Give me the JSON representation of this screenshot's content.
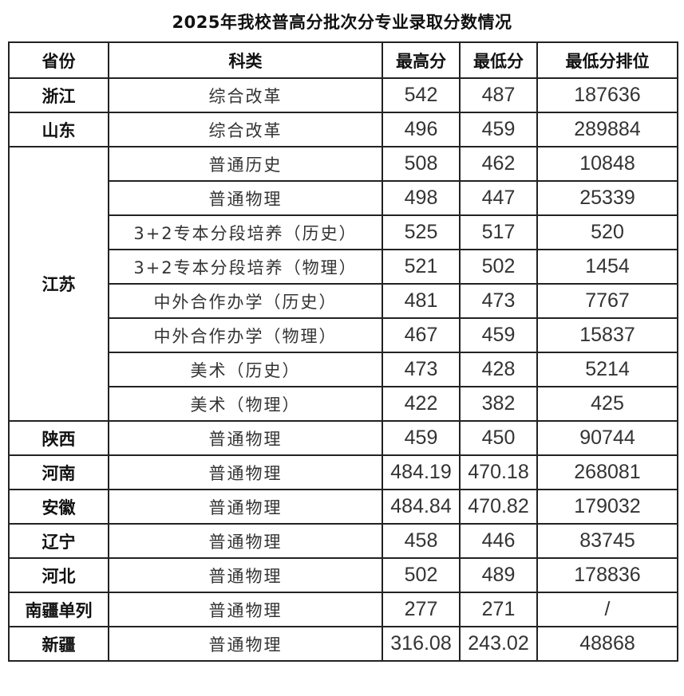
{
  "title": "2025年我校普高分批次分专业录取分数情况",
  "headers": [
    "省份",
    "科类",
    "最高分",
    "最低分",
    "最低分排位"
  ],
  "groups": [
    {
      "province": "浙江",
      "rows": [
        [
          "综合改革",
          "542",
          "487",
          "187636"
        ]
      ]
    },
    {
      "province": "山东",
      "rows": [
        [
          "综合改革",
          "496",
          "459",
          "289884"
        ]
      ]
    },
    {
      "province": "江苏",
      "rows": [
        [
          "普通历史",
          "508",
          "462",
          "10848"
        ],
        [
          "普通物理",
          "498",
          "447",
          "25339"
        ],
        [
          "3+2专本分段培养（历史）",
          "525",
          "517",
          "520"
        ],
        [
          "3+2专本分段培养（物理）",
          "521",
          "502",
          "1454"
        ],
        [
          "中外合作办学（历史）",
          "481",
          "473",
          "7767"
        ],
        [
          "中外合作办学（物理）",
          "467",
          "459",
          "15837"
        ],
        [
          "美术（历史）",
          "473",
          "428",
          "5214"
        ],
        [
          "美术（物理）",
          "422",
          "382",
          "425"
        ]
      ]
    },
    {
      "province": "陕西",
      "rows": [
        [
          "普通物理",
          "459",
          "450",
          "90744"
        ]
      ]
    },
    {
      "province": "河南",
      "rows": [
        [
          "普通物理",
          "484.19",
          "470.18",
          "268081"
        ]
      ]
    },
    {
      "province": "安徽",
      "rows": [
        [
          "普通物理",
          "484.84",
          "470.82",
          "179032"
        ]
      ]
    },
    {
      "province": "辽宁",
      "rows": [
        [
          "普通物理",
          "458",
          "446",
          "83745"
        ]
      ]
    },
    {
      "province": "河北",
      "rows": [
        [
          "普通物理",
          "502",
          "489",
          "178836"
        ]
      ]
    },
    {
      "province": "南疆单列",
      "rows": [
        [
          "普通物理",
          "277",
          "271",
          "/"
        ]
      ]
    },
    {
      "province": "新疆",
      "rows": [
        [
          "普通物理",
          "316.08",
          "243.02",
          "48868"
        ]
      ]
    }
  ]
}
